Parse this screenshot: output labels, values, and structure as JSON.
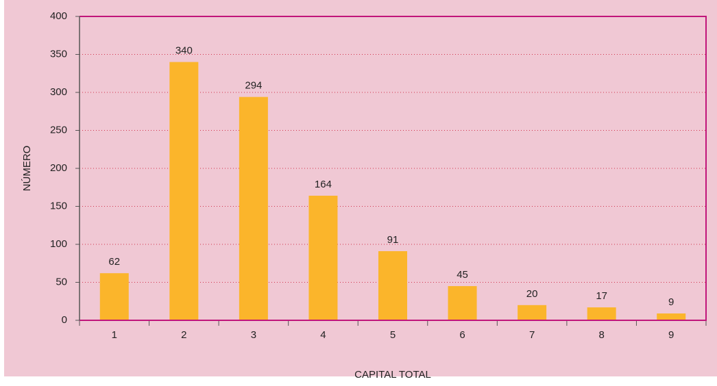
{
  "chart_data": {
    "type": "bar",
    "x_label": "CAPITAL TOTAL",
    "y_label": "NÚMERO",
    "categories": [
      "1",
      "2",
      "3",
      "4",
      "5",
      "6",
      "7",
      "8",
      "9"
    ],
    "values": [
      62,
      340,
      294,
      164,
      91,
      45,
      20,
      17,
      9
    ],
    "color": "#fbb52b",
    "ylim": [
      0,
      400
    ],
    "yticks": [
      0,
      50,
      100,
      150,
      200,
      250,
      300,
      350,
      400
    ],
    "grid": true
  }
}
